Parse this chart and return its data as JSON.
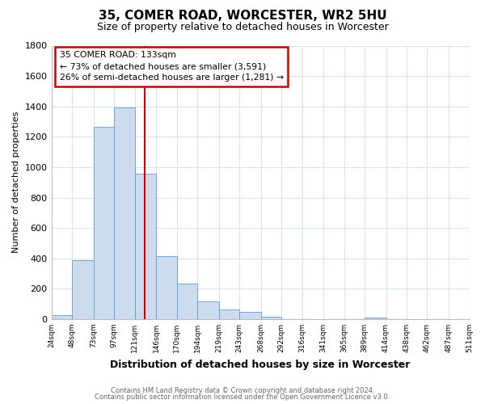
{
  "title": "35, COMER ROAD, WORCESTER, WR2 5HU",
  "subtitle": "Size of property relative to detached houses in Worcester",
  "xlabel": "Distribution of detached houses by size in Worcester",
  "ylabel": "Number of detached properties",
  "bar_color": "#ccdcee",
  "bar_edge_color": "#6699cc",
  "grid_color": "#d8e4f0",
  "background_color": "#ffffff",
  "plot_bg_color": "#ffffff",
  "bin_edges": [
    24,
    48,
    73,
    97,
    121,
    146,
    170,
    194,
    219,
    243,
    268,
    292,
    316,
    341,
    365,
    389,
    414,
    438,
    462,
    487,
    511
  ],
  "bin_labels": [
    "24sqm",
    "48sqm",
    "73sqm",
    "97sqm",
    "121sqm",
    "146sqm",
    "170sqm",
    "194sqm",
    "219sqm",
    "243sqm",
    "268sqm",
    "292sqm",
    "316sqm",
    "341sqm",
    "365sqm",
    "389sqm",
    "414sqm",
    "438sqm",
    "462sqm",
    "487sqm",
    "511sqm"
  ],
  "counts": [
    25,
    390,
    1265,
    1395,
    955,
    415,
    235,
    115,
    65,
    47,
    15,
    0,
    0,
    0,
    0,
    12,
    0,
    0,
    0,
    0
  ],
  "vline_x": 133,
  "vline_color": "#cc0000",
  "annotation_line1": "35 COMER ROAD: 133sqm",
  "annotation_line2": "← 73% of detached houses are smaller (3,591)",
  "annotation_line3": "26% of semi-detached houses are larger (1,281) →",
  "annotation_box_color": "#ffffff",
  "annotation_box_edge": "#cc0000",
  "ylim": [
    0,
    1800
  ],
  "yticks": [
    0,
    200,
    400,
    600,
    800,
    1000,
    1200,
    1400,
    1600,
    1800
  ],
  "footer1": "Contains HM Land Registry data © Crown copyright and database right 2024.",
  "footer2": "Contains public sector information licensed under the Open Government Licence v3.0."
}
